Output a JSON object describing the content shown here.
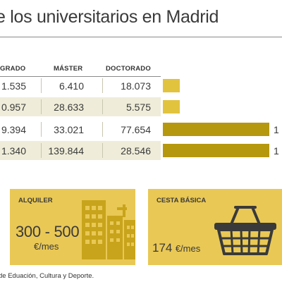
{
  "title": "e los universitarios en Madrid",
  "table": {
    "headers": [
      "GRADO",
      "MÁSTER",
      "DOCTORADO"
    ],
    "rows": [
      {
        "grado": "1.535",
        "master": "6.410",
        "doctorado": "18.073",
        "bar_fraction": 0.14,
        "bar_style": "light",
        "end_label": ""
      },
      {
        "grado": "0.957",
        "master": "28.633",
        "doctorado": "5.575",
        "bar_fraction": 0.14,
        "bar_style": "light",
        "end_label": ""
      },
      {
        "grado": "9.394",
        "master": "33.021",
        "doctorado": "77.654",
        "bar_fraction": 0.88,
        "bar_style": "dark",
        "end_label": "1"
      },
      {
        "grado": "1.340",
        "master": "139.844",
        "doctorado": "28.546",
        "bar_fraction": 0.88,
        "bar_style": "dark",
        "end_label": "1"
      }
    ]
  },
  "cards": {
    "alquiler": {
      "label": "ALQUILER",
      "value": "300 - 500",
      "unit": "€/mes",
      "icon": "buildings-icon"
    },
    "cesta": {
      "label": "CESTA BÁSICA",
      "value": "174",
      "unit": "€/mes",
      "icon": "basket-icon"
    }
  },
  "source": "de Eduación, Cultura y Deporte.",
  "colors": {
    "dark_bar": "#b5980e",
    "light_bar": "#e2c33e",
    "card_bg": "#e9c855",
    "row_shade": "#efedd9"
  }
}
